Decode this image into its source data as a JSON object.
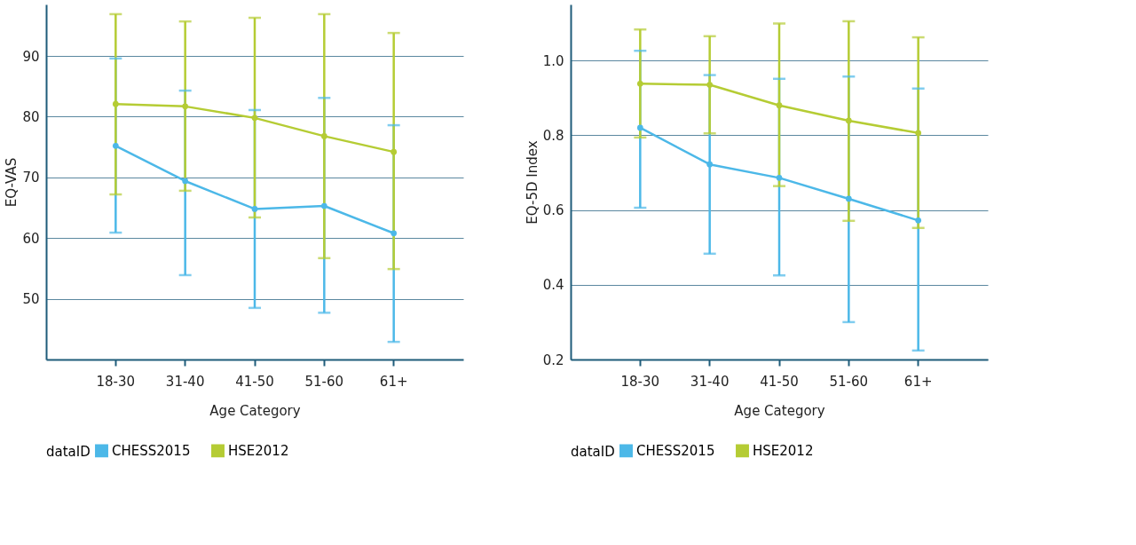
{
  "chart_data": [
    {
      "type": "line",
      "xlabel": "Age Category",
      "ylabel": "EQ-VAS",
      "legend_title": "dataID",
      "legend": "bottom",
      "grid": "y",
      "marker": "circle",
      "categories": [
        "18-30",
        "31-40",
        "41-50",
        "51-60",
        "61+"
      ],
      "ylim": [
        40,
        98.5
      ],
      "yticks": [
        50,
        60,
        70,
        80,
        90
      ],
      "series": [
        {
          "name": "CHESS2015",
          "color": "#4cb8e8",
          "values": [
            75.2,
            69.4,
            64.8,
            65.3,
            60.8
          ],
          "errors": [
            [
              60.9,
              89.6
            ],
            [
              53.9,
              84.3
            ],
            [
              48.5,
              81.1
            ],
            [
              47.7,
              83.1
            ],
            [
              42.9,
              78.6
            ]
          ]
        },
        {
          "name": "HSE2012",
          "color": "#b5cc34",
          "values": [
            82.1,
            81.7,
            79.8,
            76.8,
            74.2
          ],
          "errors": [
            [
              67.2,
              96.9
            ],
            [
              67.8,
              95.7
            ],
            [
              63.4,
              96.3
            ],
            [
              56.7,
              96.9
            ],
            [
              54.9,
              93.8
            ]
          ]
        }
      ]
    },
    {
      "type": "line",
      "xlabel": "Age Category",
      "ylabel": "EQ-5D Index",
      "legend_title": "dataID",
      "legend": "bottom",
      "grid": "y",
      "marker": "circle",
      "categories": [
        "18-30",
        "31-40",
        "41-50",
        "51-60",
        "61+"
      ],
      "ylim": [
        0.2,
        1.15
      ],
      "yticks": [
        0.2,
        0.4,
        0.6,
        0.8,
        {
          "value": 1,
          "label": "1.0"
        }
      ],
      "series": [
        {
          "name": "CHESS2015",
          "color": "#4cb8e8",
          "values": [
            0.82,
            0.722,
            0.686,
            0.63,
            0.572
          ],
          "errors": [
            [
              0.606,
              1.026
            ],
            [
              0.483,
              0.961
            ],
            [
              0.425,
              0.951
            ],
            [
              0.3,
              0.957
            ],
            [
              0.224,
              0.925
            ]
          ]
        },
        {
          "name": "HSE2012",
          "color": "#b5cc34",
          "values": [
            0.938,
            0.935,
            0.88,
            0.839,
            0.806
          ],
          "errors": [
            [
              0.794,
              1.083
            ],
            [
              0.805,
              1.065
            ],
            [
              0.664,
              1.099
            ],
            [
              0.571,
              1.105
            ],
            [
              0.552,
              1.062
            ]
          ]
        }
      ]
    }
  ]
}
